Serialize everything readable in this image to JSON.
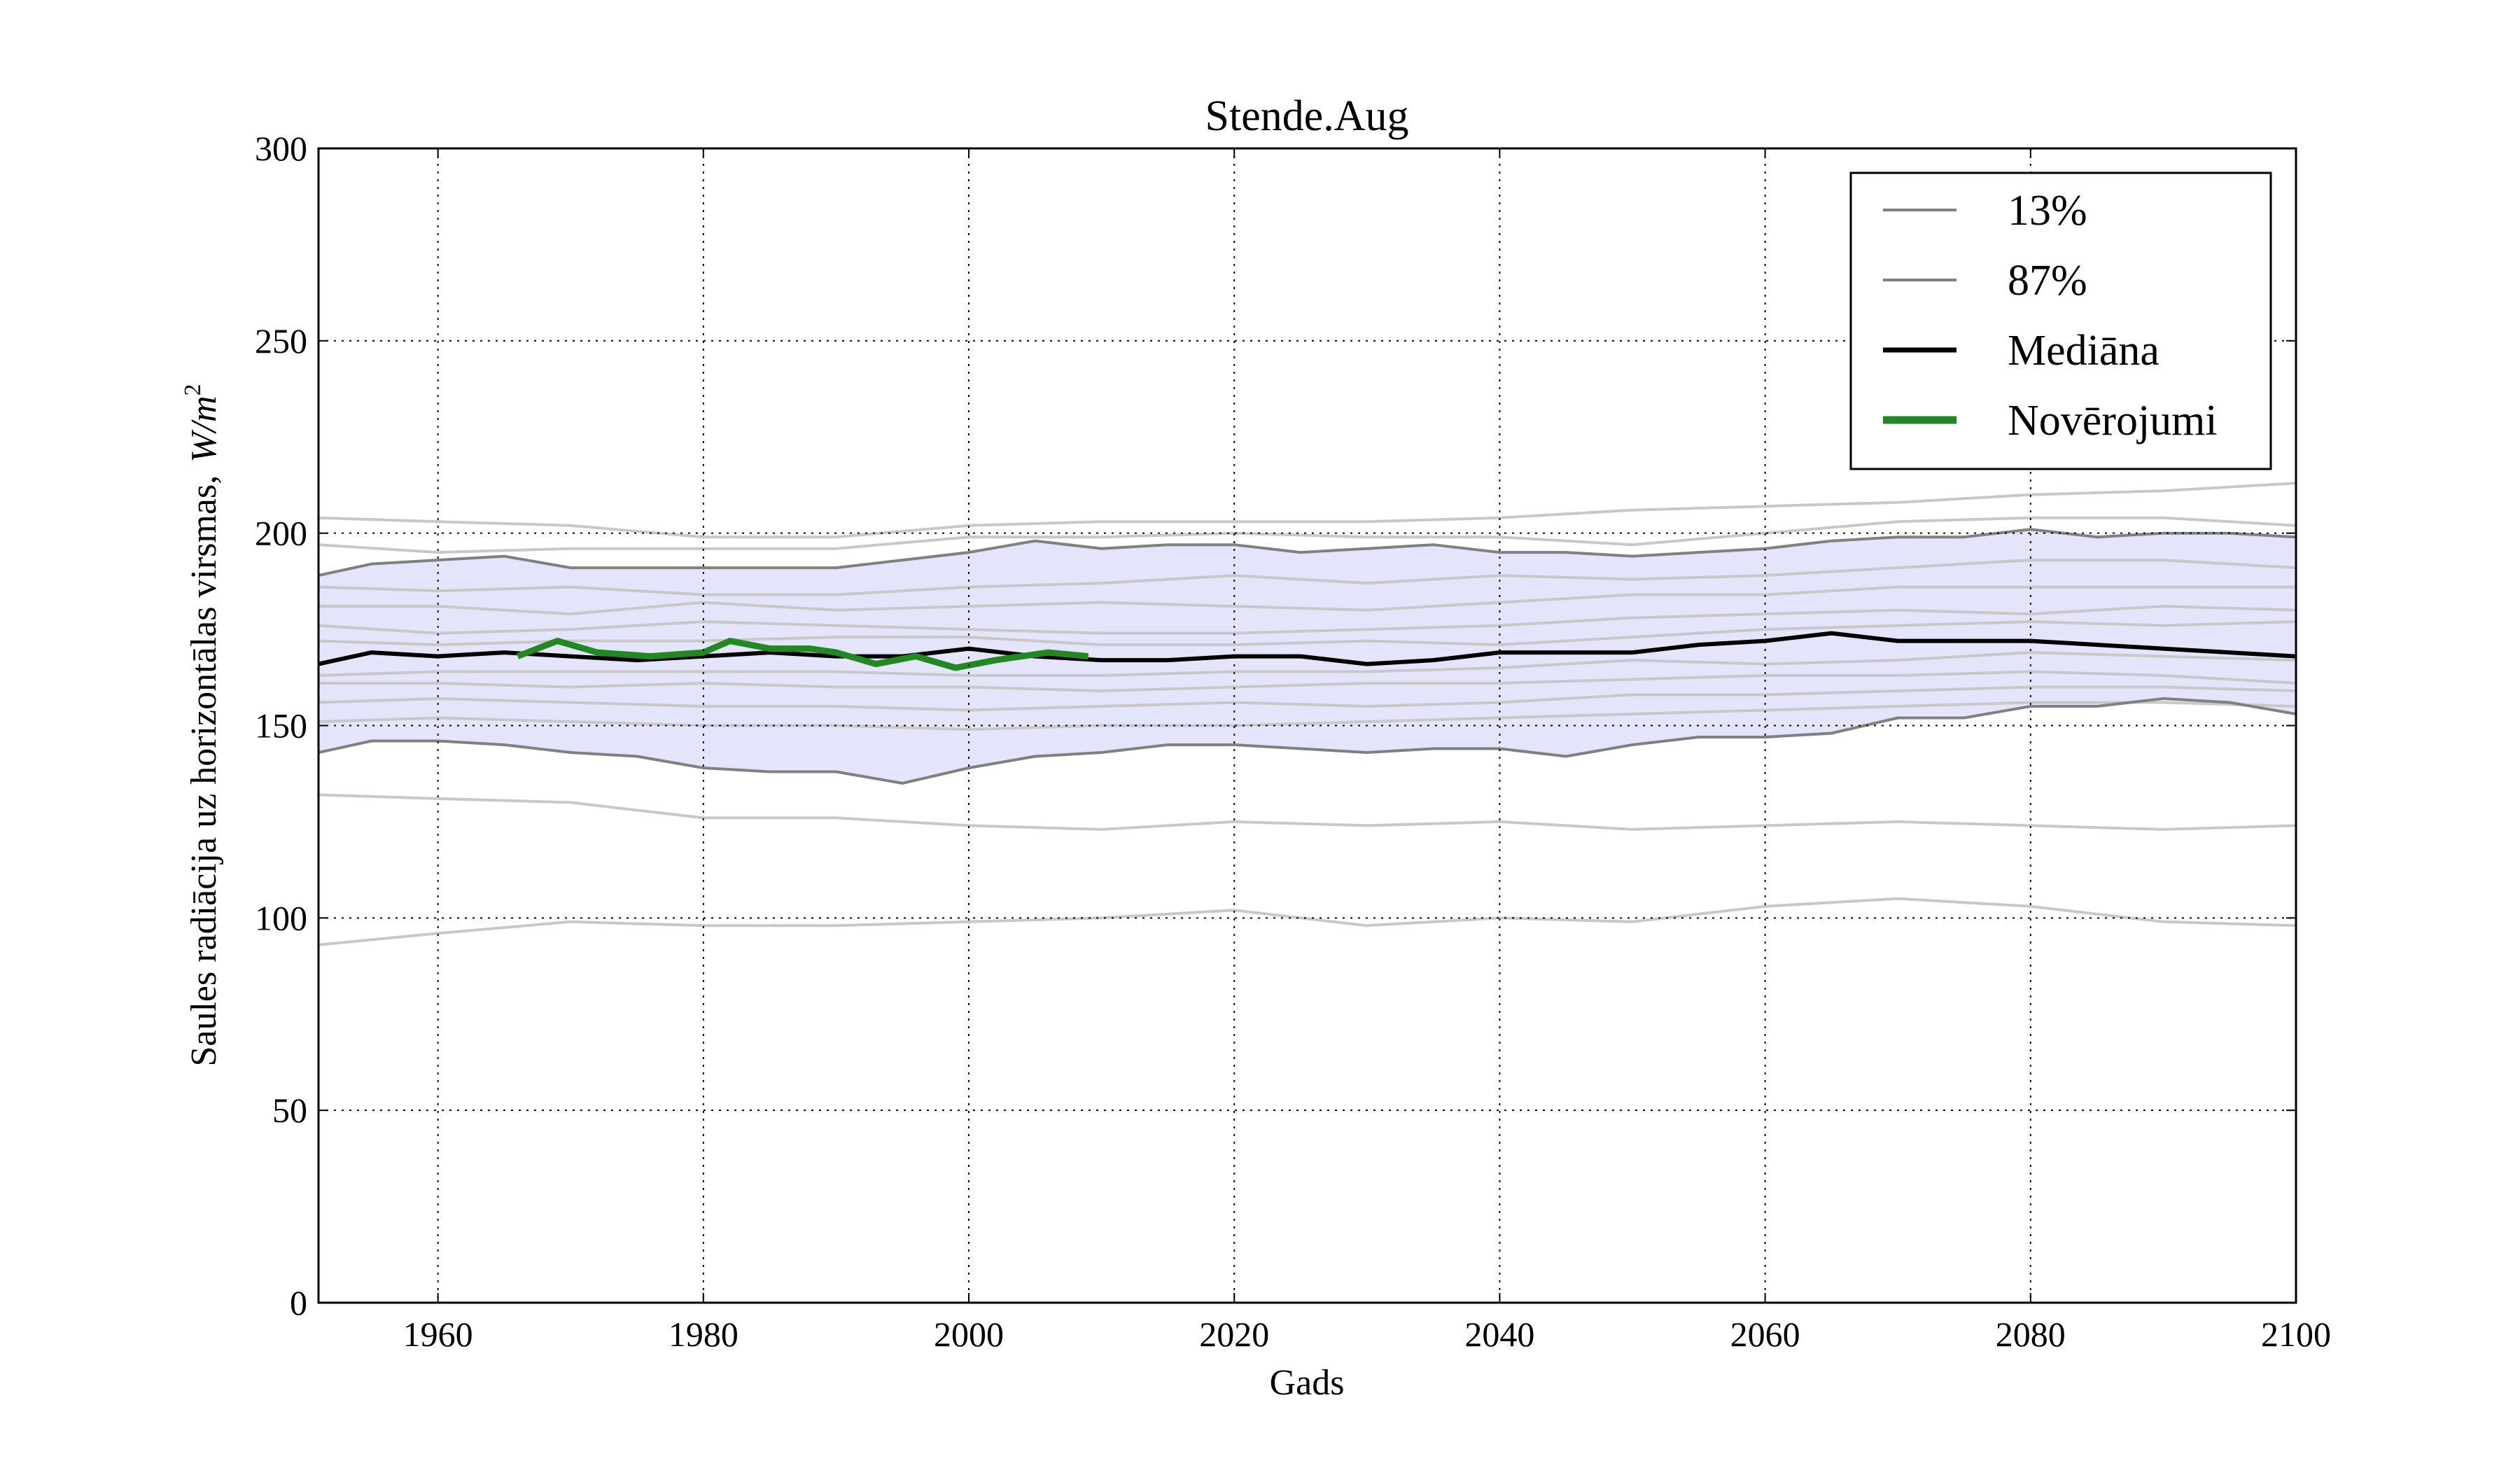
{
  "chart_data": {
    "type": "line",
    "title": "Stende.Aug",
    "xlabel": "Gads",
    "ylabel_text": "Saules radiācija uz horizontālas virsmas,",
    "ylabel_unit_w": "W",
    "ylabel_unit_m": "m",
    "ylabel_unit_exp": "2",
    "xlim": [
      1951,
      2100
    ],
    "ylim": [
      0,
      300
    ],
    "x_ticks": [
      1960,
      1980,
      2000,
      2020,
      2040,
      2060,
      2080,
      2100
    ],
    "y_ticks": [
      0,
      50,
      100,
      150,
      200,
      250,
      300
    ],
    "grid": true,
    "grid_style": "dotted",
    "legend_position": "top-right",
    "band": {
      "description_color": "#e4e4fb",
      "lower": "13%",
      "upper": "87%"
    },
    "series": [
      {
        "name": "13%",
        "color": "#808080",
        "x": [
          1951,
          1955,
          1960,
          1965,
          1970,
          1975,
          1980,
          1985,
          1990,
          1995,
          2000,
          2005,
          2010,
          2015,
          2020,
          2025,
          2030,
          2035,
          2040,
          2045,
          2050,
          2055,
          2060,
          2065,
          2070,
          2075,
          2080,
          2085,
          2090,
          2095,
          2100
        ],
        "values": [
          143,
          146,
          146,
          145,
          143,
          142,
          139,
          138,
          138,
          135,
          139,
          142,
          143,
          145,
          145,
          144,
          143,
          144,
          144,
          142,
          145,
          147,
          147,
          148,
          152,
          152,
          155,
          155,
          157,
          156,
          153
        ]
      },
      {
        "name": "87%",
        "color": "#808080",
        "x": [
          1951,
          1955,
          1960,
          1965,
          1970,
          1975,
          1980,
          1985,
          1990,
          1995,
          2000,
          2005,
          2010,
          2015,
          2020,
          2025,
          2030,
          2035,
          2040,
          2045,
          2050,
          2055,
          2060,
          2065,
          2070,
          2075,
          2080,
          2085,
          2090,
          2095,
          2100
        ],
        "values": [
          189,
          192,
          193,
          194,
          191,
          191,
          191,
          191,
          191,
          193,
          195,
          198,
          196,
          197,
          197,
          195,
          196,
          197,
          195,
          195,
          194,
          195,
          196,
          198,
          199,
          199,
          201,
          199,
          200,
          200,
          199
        ]
      },
      {
        "name": "Mediāna",
        "color": "#000000",
        "x": [
          1951,
          1955,
          1960,
          1965,
          1970,
          1975,
          1980,
          1985,
          1990,
          1995,
          2000,
          2005,
          2010,
          2015,
          2020,
          2025,
          2030,
          2035,
          2040,
          2045,
          2050,
          2055,
          2060,
          2065,
          2070,
          2075,
          2080,
          2085,
          2090,
          2095,
          2100
        ],
        "values": [
          166,
          169,
          168,
          169,
          168,
          167,
          168,
          169,
          168,
          168,
          170,
          168,
          167,
          167,
          168,
          168,
          166,
          167,
          169,
          169,
          169,
          171,
          172,
          174,
          172,
          172,
          172,
          171,
          170,
          169,
          168
        ]
      },
      {
        "name": "Novērojumi",
        "color": "#228822",
        "x": [
          1966,
          1969,
          1972,
          1976,
          1980,
          1982,
          1985,
          1988,
          1990,
          1993,
          1996,
          1999,
          2002,
          2006,
          2009
        ],
        "values": [
          168,
          172,
          169,
          168,
          169,
          172,
          170,
          170,
          169,
          166,
          168,
          165,
          167,
          169,
          168
        ]
      }
    ],
    "ensemble_members": [
      {
        "x": [
          1951,
          1960,
          1970,
          1980,
          1990,
          2000,
          2010,
          2020,
          2030,
          2040,
          2050,
          2060,
          2070,
          2080,
          2090,
          2100
        ],
        "values": [
          204,
          203,
          202,
          199,
          199,
          202,
          203,
          203,
          203,
          204,
          206,
          207,
          208,
          210,
          211,
          213
        ]
      },
      {
        "x": [
          1951,
          1960,
          1970,
          1980,
          1990,
          2000,
          2010,
          2020,
          2030,
          2040,
          2050,
          2060,
          2070,
          2080,
          2090,
          2100
        ],
        "values": [
          197,
          195,
          196,
          196,
          196,
          199,
          199,
          200,
          199,
          199,
          197,
          200,
          203,
          204,
          204,
          202
        ]
      },
      {
        "x": [
          1951,
          1960,
          1970,
          1980,
          1990,
          2000,
          2010,
          2020,
          2030,
          2040,
          2050,
          2060,
          2070,
          2080,
          2090,
          2100
        ],
        "values": [
          186,
          185,
          186,
          184,
          184,
          186,
          187,
          189,
          187,
          189,
          188,
          189,
          191,
          193,
          193,
          191
        ]
      },
      {
        "x": [
          1951,
          1960,
          1970,
          1980,
          1990,
          2000,
          2010,
          2020,
          2030,
          2040,
          2050,
          2060,
          2070,
          2080,
          2090,
          2100
        ],
        "values": [
          181,
          181,
          179,
          182,
          180,
          181,
          182,
          181,
          180,
          182,
          184,
          184,
          186,
          186,
          186,
          186
        ]
      },
      {
        "x": [
          1951,
          1960,
          1970,
          1980,
          1990,
          2000,
          2010,
          2020,
          2030,
          2040,
          2050,
          2060,
          2070,
          2080,
          2090,
          2100
        ],
        "values": [
          176,
          174,
          175,
          177,
          176,
          175,
          174,
          174,
          175,
          176,
          178,
          179,
          180,
          179,
          181,
          180
        ]
      },
      {
        "x": [
          1951,
          1960,
          1970,
          1980,
          1990,
          2000,
          2010,
          2020,
          2030,
          2040,
          2050,
          2060,
          2070,
          2080,
          2090,
          2100
        ],
        "values": [
          172,
          171,
          172,
          172,
          173,
          173,
          171,
          171,
          172,
          171,
          173,
          175,
          176,
          177,
          176,
          177
        ]
      },
      {
        "x": [
          1951,
          1960,
          1970,
          1980,
          1990,
          2000,
          2010,
          2020,
          2030,
          2040,
          2050,
          2060,
          2070,
          2080,
          2090,
          2100
        ],
        "values": [
          163,
          164,
          164,
          164,
          164,
          163,
          163,
          164,
          164,
          165,
          167,
          166,
          167,
          169,
          168,
          167
        ]
      },
      {
        "x": [
          1951,
          1960,
          1970,
          1980,
          1990,
          2000,
          2010,
          2020,
          2030,
          2040,
          2050,
          2060,
          2070,
          2080,
          2090,
          2100
        ],
        "values": [
          161,
          161,
          160,
          161,
          160,
          160,
          159,
          160,
          161,
          161,
          162,
          163,
          163,
          164,
          163,
          161
        ]
      },
      {
        "x": [
          1951,
          1960,
          1970,
          1980,
          1990,
          2000,
          2010,
          2020,
          2030,
          2040,
          2050,
          2060,
          2070,
          2080,
          2090,
          2100
        ],
        "values": [
          156,
          157,
          156,
          155,
          155,
          154,
          155,
          156,
          155,
          156,
          158,
          158,
          159,
          160,
          160,
          159
        ]
      },
      {
        "x": [
          1951,
          1960,
          1970,
          1980,
          1990,
          2000,
          2010,
          2020,
          2030,
          2040,
          2050,
          2060,
          2070,
          2080,
          2090,
          2100
        ],
        "values": [
          151,
          152,
          151,
          150,
          150,
          149,
          150,
          150,
          151,
          152,
          153,
          154,
          155,
          156,
          156,
          155
        ]
      },
      {
        "x": [
          1951,
          1960,
          1970,
          1980,
          1990,
          2000,
          2010,
          2020,
          2030,
          2040,
          2050,
          2060,
          2070,
          2080,
          2090,
          2100
        ],
        "values": [
          132,
          131,
          130,
          126,
          126,
          124,
          123,
          125,
          124,
          125,
          123,
          124,
          125,
          124,
          123,
          124
        ]
      },
      {
        "x": [
          1951,
          1960,
          1970,
          1980,
          1990,
          2000,
          2010,
          2020,
          2030,
          2040,
          2050,
          2060,
          2070,
          2080,
          2090,
          2100
        ],
        "values": [
          93,
          96,
          99,
          98,
          98,
          99,
          100,
          102,
          98,
          100,
          99,
          103,
          105,
          103,
          99,
          98
        ]
      }
    ],
    "legend": [
      {
        "label": "13%",
        "color": "#808080",
        "width": "thin"
      },
      {
        "label": "87%",
        "color": "#808080",
        "width": "thin"
      },
      {
        "label": "Mediāna",
        "color": "#000000",
        "width": "medium"
      },
      {
        "label": "Novērojumi",
        "color": "#228822",
        "width": "thick"
      }
    ]
  }
}
